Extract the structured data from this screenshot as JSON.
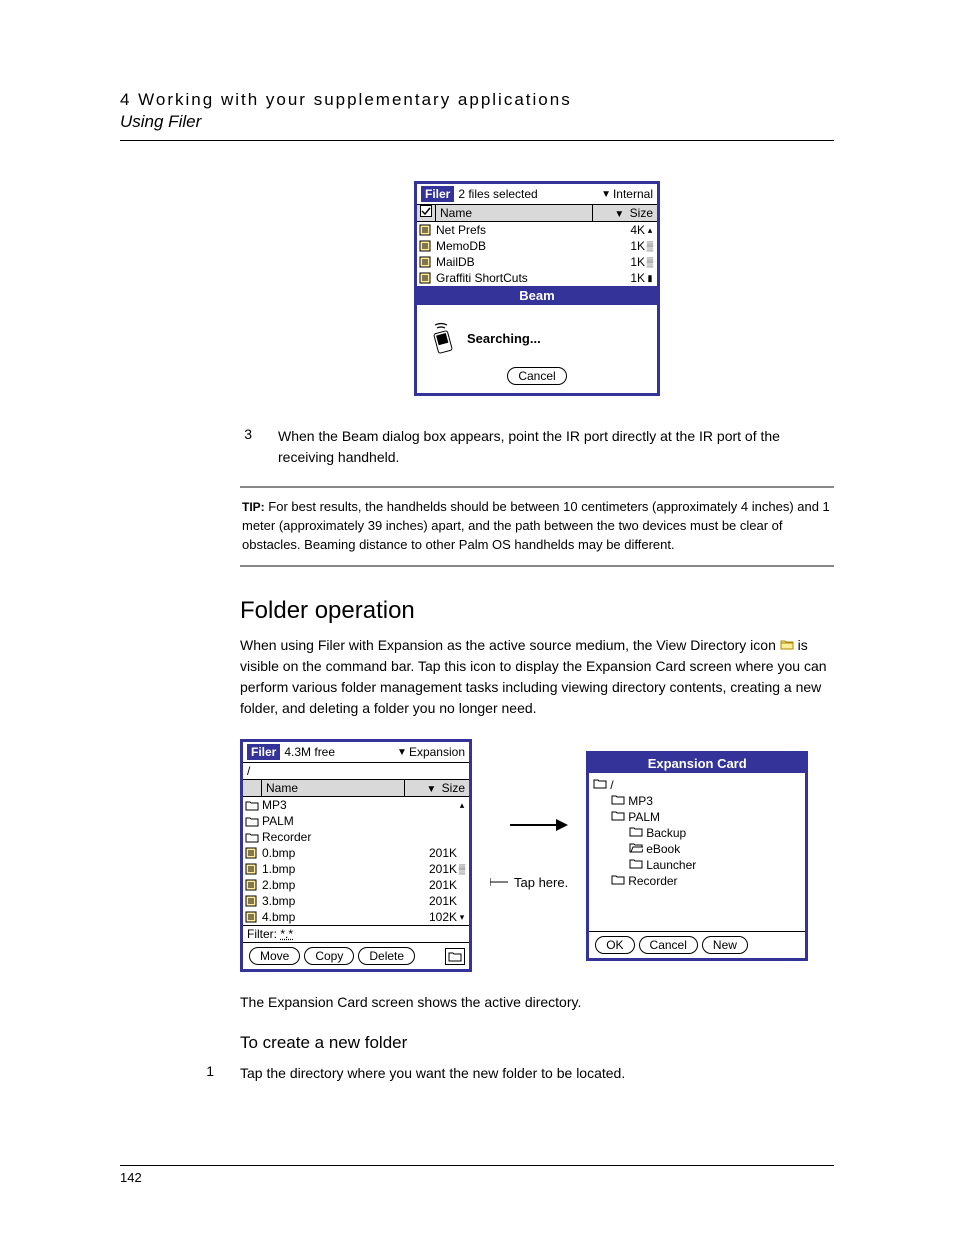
{
  "header": {
    "chapter_line": "4 Working with your supplementary applications",
    "subtitle": "Using Filer"
  },
  "colors": {
    "palm_frame": "#333399",
    "palm_header_bg": "#d9d9d9",
    "rule": "#000000"
  },
  "beam_figure": {
    "app_badge": "Filer",
    "title": "2 files selected",
    "source_menu": "Internal",
    "table": {
      "headers": {
        "name": "Name",
        "size": "Size"
      },
      "rows": [
        {
          "name": "Net Prefs",
          "size": "4K",
          "scroll": "▴"
        },
        {
          "name": "MemoDB",
          "size": "1K",
          "scroll": "▒"
        },
        {
          "name": "MailDB",
          "size": "1K",
          "scroll": "▒"
        },
        {
          "name": "Graffiti ShortCuts",
          "size": "1K",
          "scroll": "▮"
        }
      ]
    },
    "beam_label": "Beam",
    "searching": "Searching...",
    "cancel": "Cancel"
  },
  "step3": {
    "num": "3",
    "text": "When the Beam dialog box appears, point the IR port directly at the IR port of the receiving handheld."
  },
  "tip": {
    "label": "TIP:",
    "text": "For best results, the handhelds should be between 10 centimeters (approximately 4 inches) and 1 meter (approximately 39 inches) apart, and the path between the two devices must be clear of obstacles. Beaming distance to other Palm OS handhelds may be different."
  },
  "folder_op": {
    "heading": "Folder operation",
    "body_pre": "When using Filer with Expansion as the active source medium, the View Directory icon ",
    "body_post": " is visible on the command bar. Tap this icon to display the Expansion Card screen where you can perform various folder management tasks including viewing directory contents, creating a new folder, and deleting a folder you no longer need."
  },
  "filer_expansion": {
    "app_badge": "Filer",
    "free": "4.3M free",
    "source_menu": "Expansion",
    "path": "/",
    "table": {
      "headers": {
        "name": "Name",
        "size": "Size"
      },
      "rows": [
        {
          "name": "MP3",
          "size": "",
          "scroll": "▴"
        },
        {
          "name": "PALM",
          "size": "",
          "scroll": ""
        },
        {
          "name": "Recorder",
          "size": "",
          "scroll": ""
        },
        {
          "name": "0.bmp",
          "size": "201K",
          "scroll": ""
        },
        {
          "name": "1.bmp",
          "size": "201K",
          "scroll": "▒"
        },
        {
          "name": "2.bmp",
          "size": "201K",
          "scroll": ""
        },
        {
          "name": "3.bmp",
          "size": "201K",
          "scroll": ""
        },
        {
          "name": "4.bmp",
          "size": "102K",
          "scroll": "▾"
        }
      ]
    },
    "filter_label": "Filter:",
    "filter_value": "*.*",
    "buttons": {
      "move": "Move",
      "copy": "Copy",
      "delete": "Delete"
    },
    "tap_here": "Tap here."
  },
  "expansion_card": {
    "title": "Expansion Card",
    "tree": {
      "root": "/",
      "children": [
        {
          "name": "MP3",
          "indent": 1,
          "open": false
        },
        {
          "name": "PALM",
          "indent": 1,
          "open": false
        },
        {
          "name": "Backup",
          "indent": 2,
          "open": false
        },
        {
          "name": "eBook",
          "indent": 2,
          "open": true
        },
        {
          "name": "Launcher",
          "indent": 2,
          "open": false
        },
        {
          "name": "Recorder",
          "indent": 1,
          "open": false
        }
      ]
    },
    "buttons": {
      "ok": "OK",
      "cancel": "Cancel",
      "new": "New"
    }
  },
  "caption": "The Expansion Card screen shows the active directory.",
  "create_folder": {
    "heading": "To create a new folder",
    "step1_num": "1",
    "step1_text": "Tap the directory where you want the new folder to be located."
  },
  "page_number": "142"
}
